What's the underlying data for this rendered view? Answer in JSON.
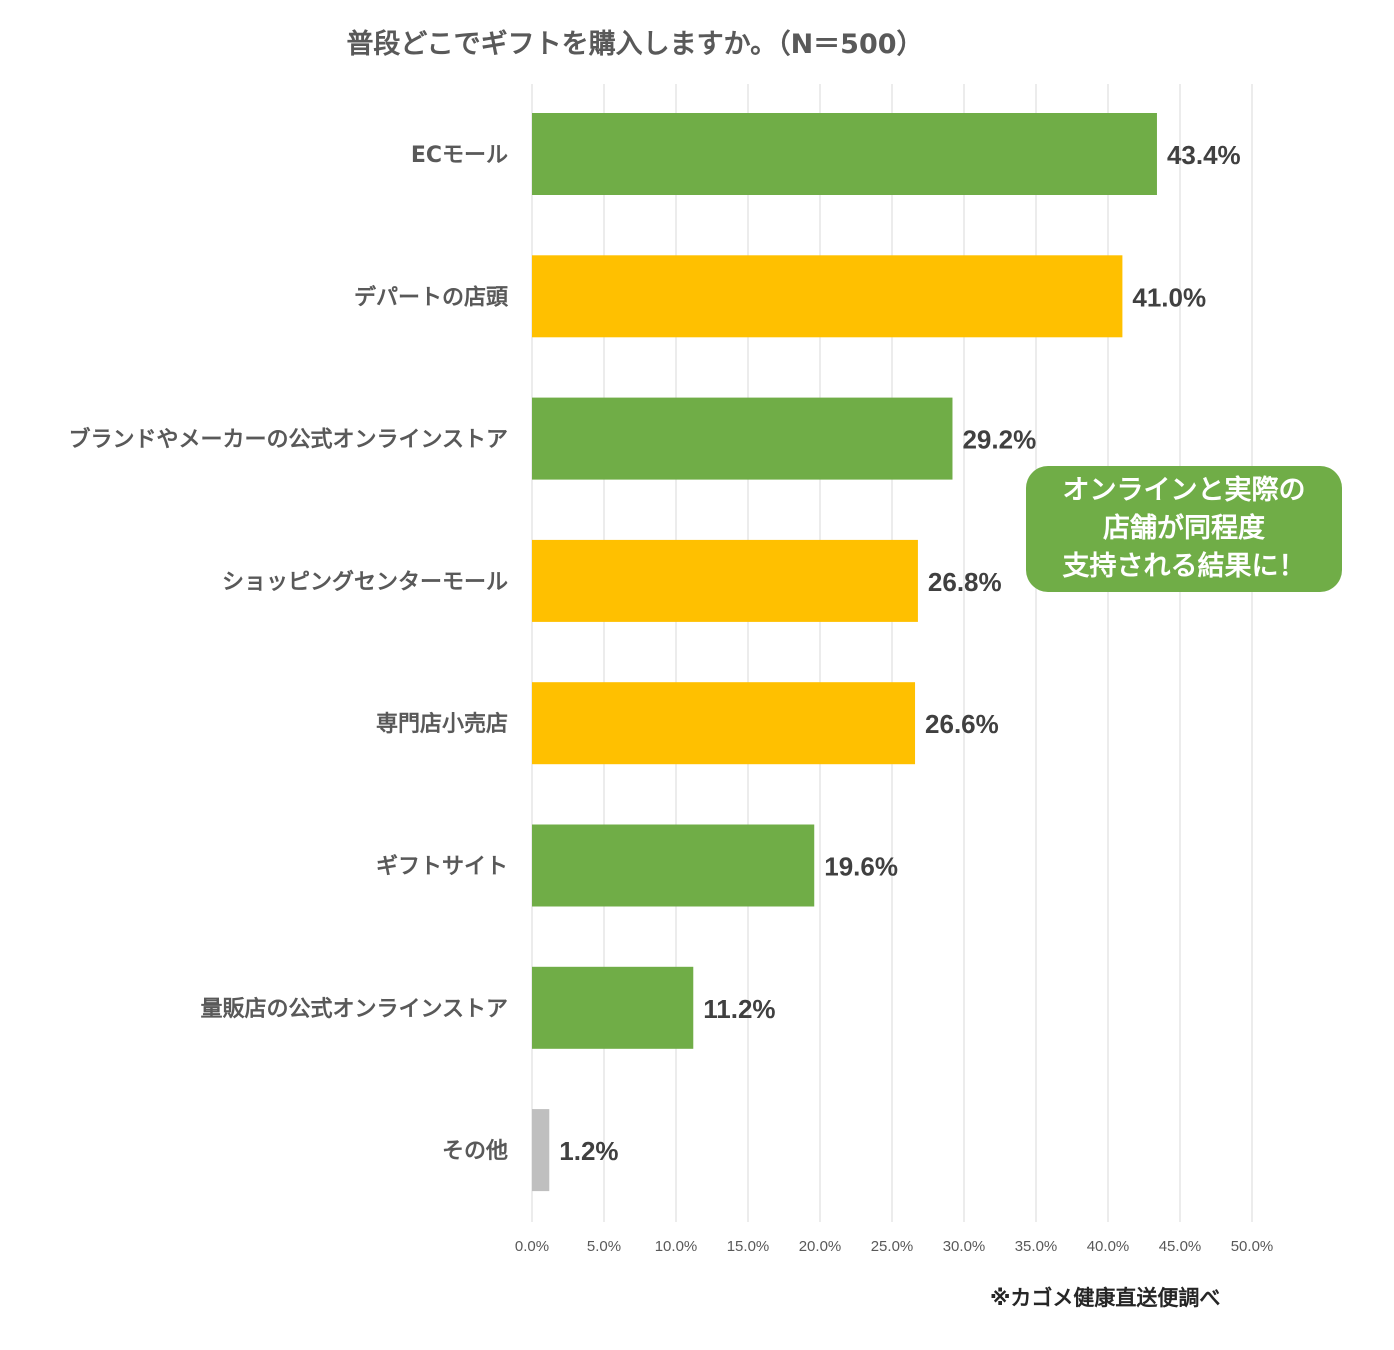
{
  "chart_data": {
    "type": "bar",
    "orientation": "horizontal",
    "title": "普段どこでギフトを購入しますか。（N＝500）",
    "categories": [
      "ECモール",
      "デパートの店頭",
      "ブランドやメーカーの公式オンラインストア",
      "ショッピングセンターモール",
      "専門店小売店",
      "ギフトサイト",
      "量販店の公式オンラインストア",
      "その他"
    ],
    "values": [
      43.4,
      41.0,
      29.2,
      26.8,
      26.6,
      19.6,
      11.2,
      1.2
    ],
    "value_labels": [
      "43.4%",
      "41.0%",
      "29.2%",
      "26.8%",
      "26.6%",
      "19.6%",
      "11.2%",
      "1.2%"
    ],
    "bar_colors": [
      "#70ad47",
      "#ffc000",
      "#70ad47",
      "#ffc000",
      "#ffc000",
      "#70ad47",
      "#70ad47",
      "#bfbfbf"
    ],
    "xlim": [
      0,
      50
    ],
    "x_ticks": [
      "0.0%",
      "5.0%",
      "10.0%",
      "15.0%",
      "20.0%",
      "25.0%",
      "30.0%",
      "35.0%",
      "40.0%",
      "45.0%",
      "50.0%"
    ],
    "grid": true,
    "legend": "none"
  },
  "callout": {
    "lines": [
      "オンラインと実際の",
      "店舗が同程度",
      "支持される結果に！"
    ],
    "color": "#70ad47"
  },
  "source_note": "※カゴメ健康直送便調べ"
}
